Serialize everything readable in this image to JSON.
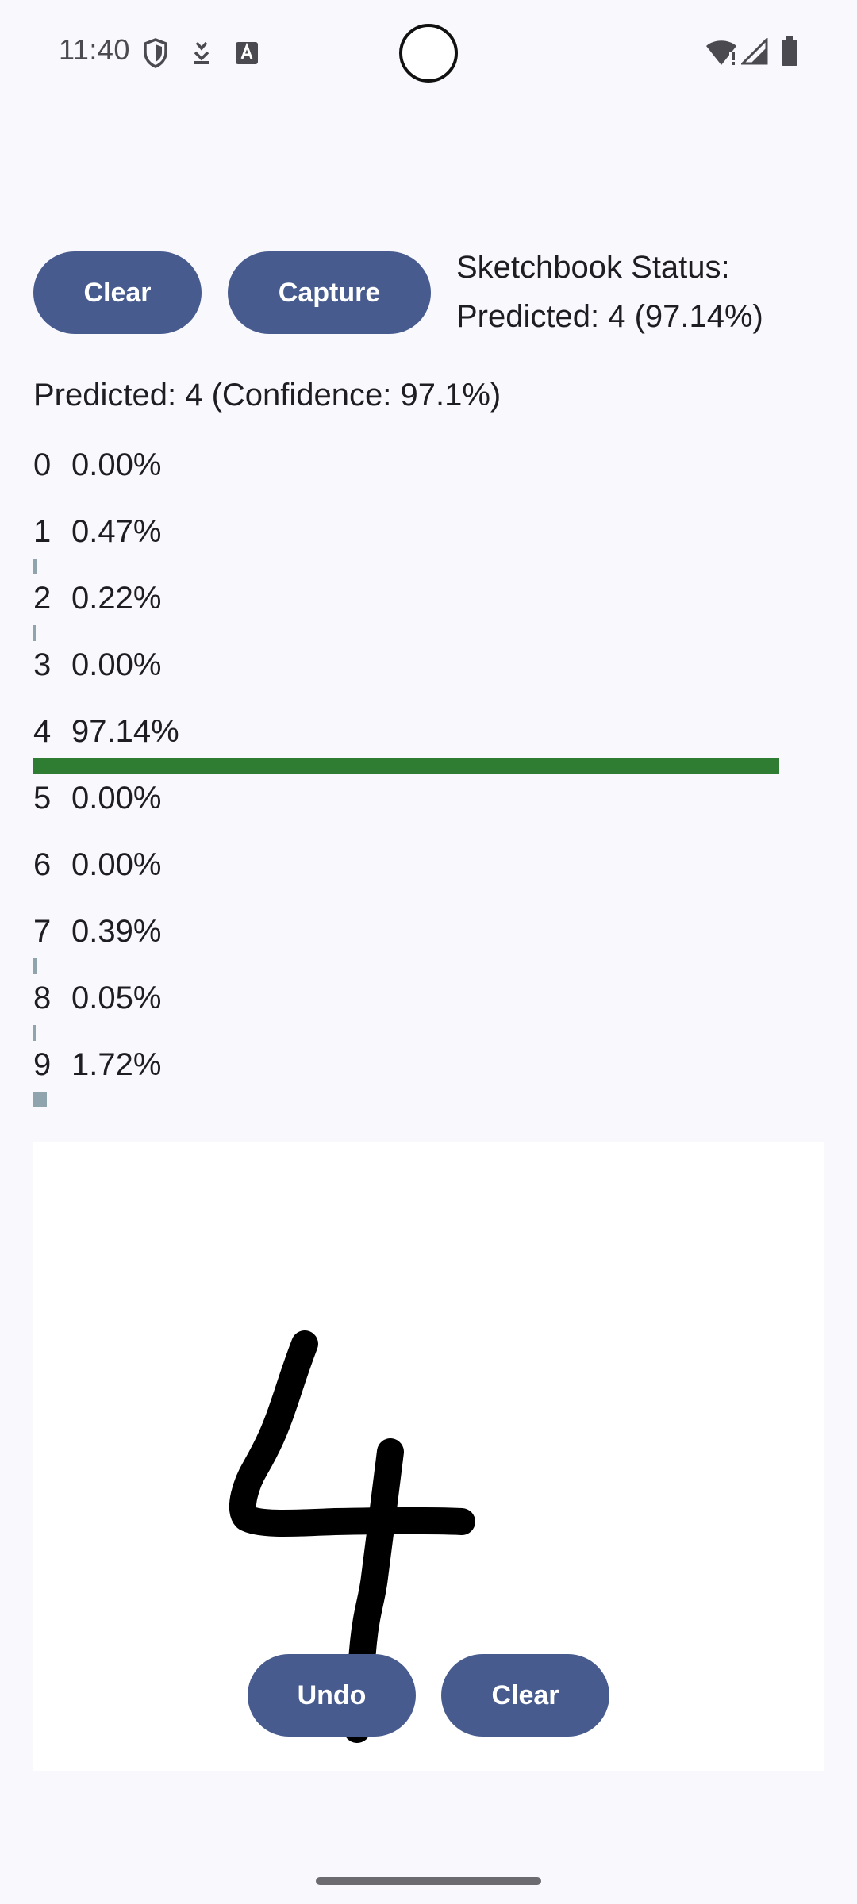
{
  "status_bar": {
    "time": "11:40",
    "left_icons": [
      "shield-icon",
      "download-icon",
      "keyboard-icon"
    ],
    "right_icons": [
      "wifi-alert-icon",
      "signal-icon",
      "battery-icon"
    ]
  },
  "toolbar": {
    "clear_label": "Clear",
    "capture_label": "Capture",
    "status_title": "Sketchbook Status:",
    "status_value": "Predicted: 4 (97.14%)"
  },
  "prediction": {
    "summary": "Predicted: 4 (Confidence: 97.1%)"
  },
  "probabilities": [
    {
      "digit": "0",
      "percent": "0.00%",
      "value": 0.0
    },
    {
      "digit": "1",
      "percent": "0.47%",
      "value": 0.47
    },
    {
      "digit": "2",
      "percent": "0.22%",
      "value": 0.22
    },
    {
      "digit": "3",
      "percent": "0.00%",
      "value": 0.0
    },
    {
      "digit": "4",
      "percent": "97.14%",
      "value": 97.14
    },
    {
      "digit": "5",
      "percent": "0.00%",
      "value": 0.0
    },
    {
      "digit": "6",
      "percent": "0.00%",
      "value": 0.0
    },
    {
      "digit": "7",
      "percent": "0.39%",
      "value": 0.39
    },
    {
      "digit": "8",
      "percent": "0.05%",
      "value": 0.05
    },
    {
      "digit": "9",
      "percent": "1.72%",
      "value": 1.72
    }
  ],
  "colors": {
    "button": "#475b8f",
    "top_bar": "#2e7d32",
    "other_bar": "#90a4ae",
    "stroke": "#000000"
  },
  "canvas": {
    "undo_label": "Undo",
    "clear_label": "Clear"
  }
}
